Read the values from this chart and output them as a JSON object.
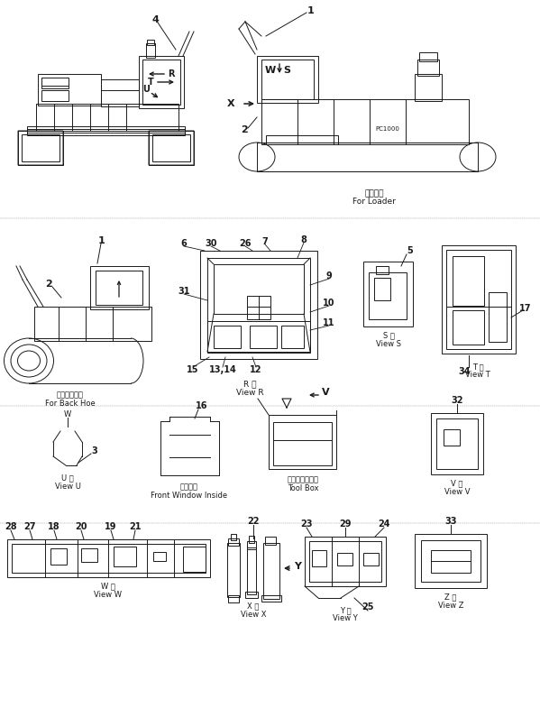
{
  "bg_color": "#ffffff",
  "lc": "#1a1a1a",
  "fig_w": 5.99,
  "fig_h": 7.85,
  "dpi": 100,
  "texts": {
    "loader_jp": "ローダ用",
    "loader_en": "For Loader",
    "backhoe_jp": "バックホー用",
    "backhoe_en": "For Back Hoe",
    "view_r_jp": "R 後",
    "view_r_en": "View R",
    "view_s_jp": "S 後",
    "view_s_en": "View S",
    "view_t_jp": "T 後",
    "view_t_en": "View T",
    "view_u_jp": "U 後",
    "view_u_en": "View U",
    "front_window_jp": "前室内図",
    "front_window_en": "Front Window Inside",
    "toolbox_jp": "ツールボックス",
    "toolbox_en": "Tool Box",
    "view_v_jp": "V 後",
    "view_v_en": "View V",
    "view_w_jp": "W 後",
    "view_w_en": "View W",
    "view_x_jp": "X 後",
    "view_x_en": "View X",
    "view_y_jp": "Y 後",
    "view_y_en": "View Y",
    "view_z_jp": "Z 後",
    "view_z_en": "View Z",
    "pc1000": "PC1000"
  }
}
